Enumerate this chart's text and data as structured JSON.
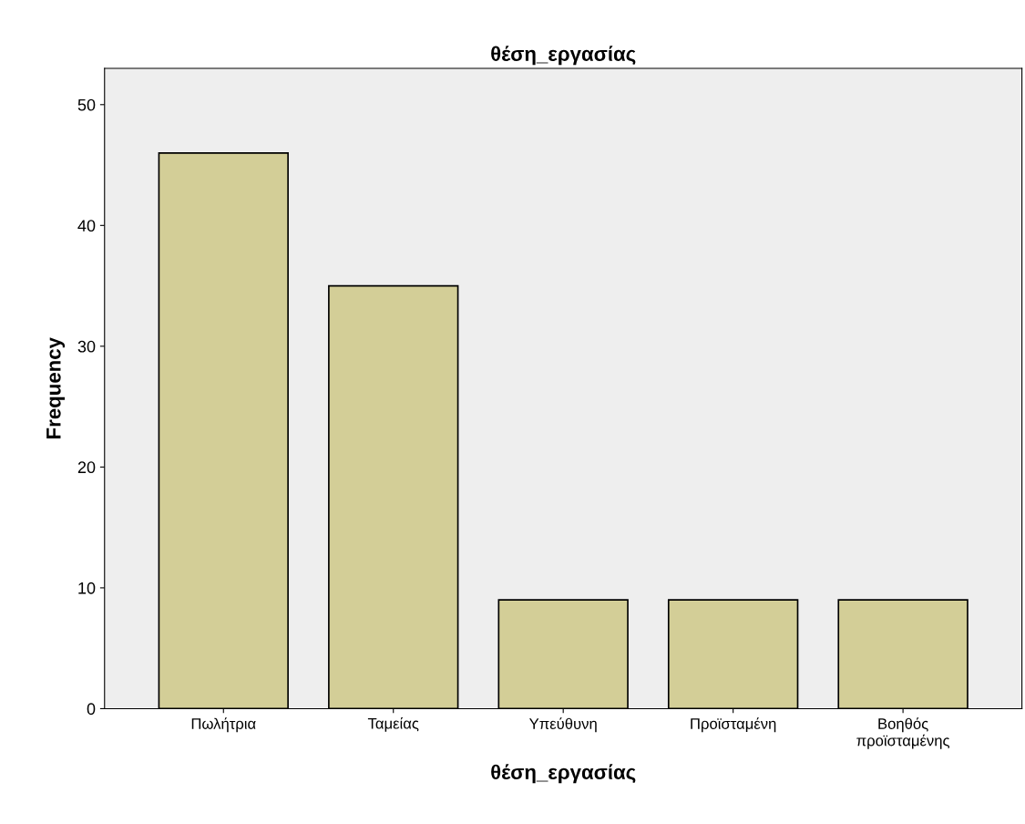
{
  "chart_data": {
    "type": "bar",
    "title": "θέση_εργασίας",
    "xlabel": "θέση_εργασίας",
    "ylabel": "Frequency",
    "categories": [
      "Πωλήτρια",
      "Ταμείας",
      "Υπεύθυνη",
      "Προϊσταμένη",
      "Βοηθός\nπροϊσταμένης"
    ],
    "values": [
      46,
      35,
      9,
      9,
      9
    ],
    "color": "#d3ce97",
    "ylim": [
      0,
      53
    ],
    "yticks": [
      0,
      10,
      20,
      30,
      40,
      50
    ],
    "grid": false,
    "legend": false
  }
}
